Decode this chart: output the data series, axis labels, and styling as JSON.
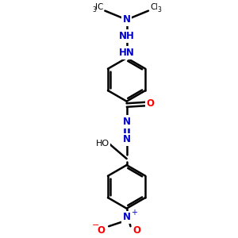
{
  "bg_color": "#FFFFFF",
  "bond_color": "#000000",
  "n_color": "#0000CC",
  "o_color": "#FF0000",
  "line_width": 1.8,
  "fig_size": [
    3.0,
    3.0
  ],
  "dpi": 100,
  "xlim": [
    -2.5,
    2.5
  ],
  "ylim": [
    -4.5,
    4.5
  ]
}
